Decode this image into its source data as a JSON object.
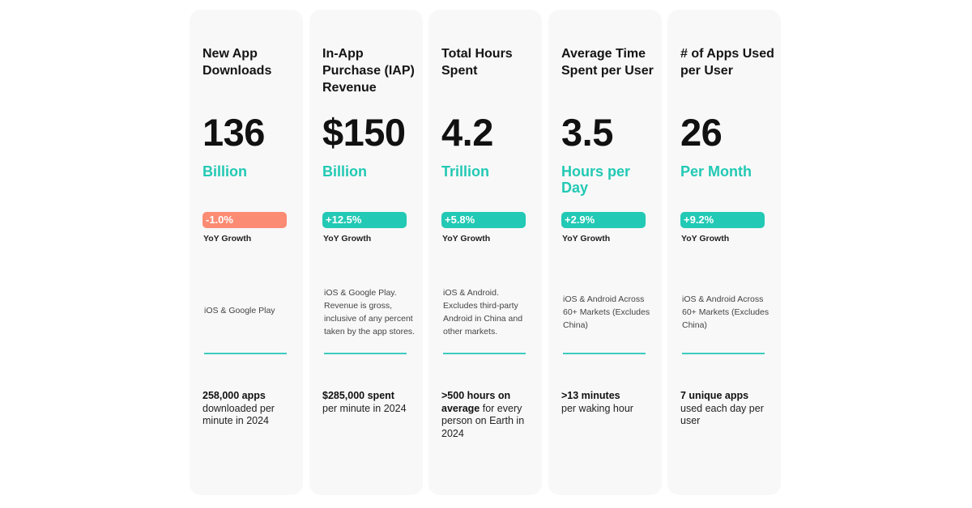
{
  "colors": {
    "accent": "#22c9b4",
    "negative": "#fb8b73",
    "card_bg": "#f8f8f8",
    "rule": "#3cccc0"
  },
  "cards": [
    {
      "title": "New App Downloads",
      "value": "136",
      "unit": "Billion",
      "change": "-1.0%",
      "change_type": "negative",
      "change_label": "YoY Growth",
      "note": "iOS & Google Play",
      "footer_bold": "258,000 apps",
      "footer_rest": "downloaded per minute in 2024"
    },
    {
      "title": "In-App Purchase (IAP) Revenue",
      "value": "$150",
      "unit": "Billion",
      "change": "+12.5%",
      "change_type": "positive",
      "change_label": "YoY Growth",
      "note": "iOS & Google Play. Revenue is gross, inclusive of any percent taken by the app stores.",
      "footer_bold": "$285,000 spent",
      "footer_rest": "per minute in 2024"
    },
    {
      "title": "Total Hours Spent",
      "value": "4.2",
      "unit": "Trillion",
      "change": "+5.8%",
      "change_type": "positive",
      "change_label": "YoY Growth",
      "note": "iOS & Android. Excludes third-party Android in China and other markets.",
      "footer_bold": ">500 hours on",
      "footer_bold2": "average",
      "footer_rest": "for every person on Earth in 2024"
    },
    {
      "title": "Average Time Spent per User",
      "value": "3.5",
      "unit": "Hours per Day",
      "change": "+2.9%",
      "change_type": "positive",
      "change_label": "YoY Growth",
      "note": "iOS & Android Across 60+ Markets (Excludes China)",
      "footer_bold": ">13 minutes",
      "footer_rest": "per waking hour"
    },
    {
      "title": "# of Apps Used per User",
      "value": "26",
      "unit": "Per Month",
      "change": "+9.2%",
      "change_type": "positive",
      "change_label": "YoY Growth",
      "note": "iOS & Android Across 60+ Markets (Excludes China)",
      "footer_bold": "7 unique apps",
      "footer_rest": "used each day per user"
    }
  ]
}
